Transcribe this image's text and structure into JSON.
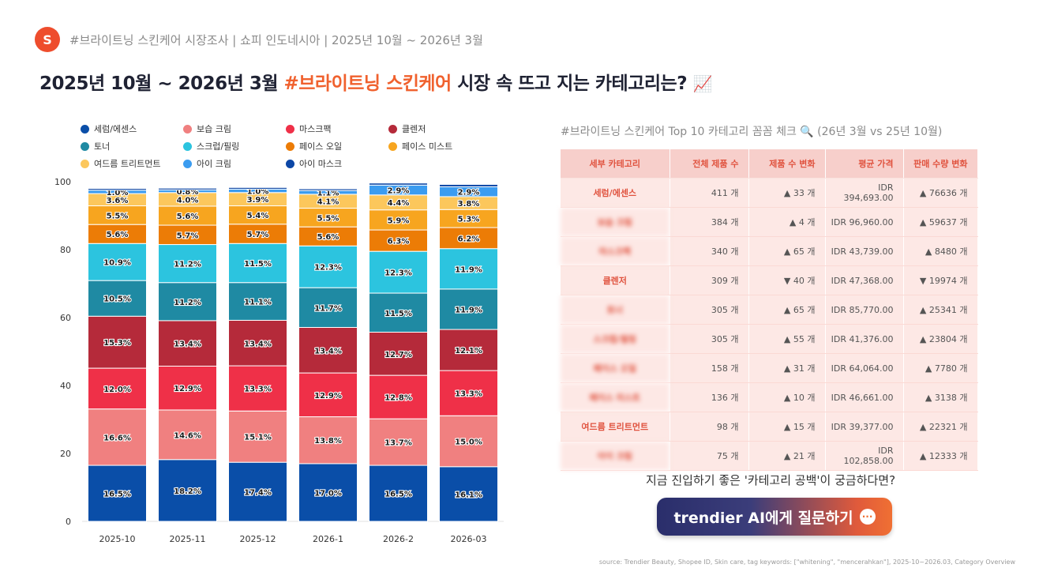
{
  "header": {
    "logo_letter": "S",
    "subtitle": "#브라이트닝 스킨케어 시장조사 | 쇼피 인도네시아 | 2025년 10월 ~ 2026년 3월",
    "title_pre": "2025년 10월 ~ 2026년 3월 ",
    "title_highlight": "#브라이트닝 스킨케어",
    "title_post": " 시장 속 뜨고 지는 카테고리는? ",
    "title_emoji": "📈"
  },
  "chart_data": {
    "type": "bar",
    "stacked": true,
    "categories": [
      "2025-10",
      "2025-11",
      "2025-12",
      "2026-1",
      "2026-2",
      "2026-03"
    ],
    "ylim": [
      0,
      100
    ],
    "yticks": [
      "0",
      "20",
      "40",
      "60",
      "80",
      "100"
    ],
    "legend_position": "top-left",
    "series": [
      {
        "name": "세럼/에센스",
        "color": "#0a4ea8",
        "values": [
          16.5,
          18.2,
          17.4,
          17.0,
          16.5,
          16.1
        ]
      },
      {
        "name": "보습 크림",
        "color": "#f08080",
        "values": [
          16.6,
          14.6,
          15.1,
          13.8,
          13.7,
          15.0
        ]
      },
      {
        "name": "마스크팩",
        "color": "#ef3048",
        "values": [
          12.0,
          12.9,
          13.3,
          12.9,
          12.8,
          13.3
        ]
      },
      {
        "name": "클렌저",
        "color": "#b52a3a",
        "values": [
          15.3,
          13.4,
          13.4,
          13.4,
          12.7,
          12.1
        ]
      },
      {
        "name": "토너",
        "color": "#1f8aa3",
        "values": [
          10.5,
          11.2,
          11.1,
          11.7,
          11.5,
          11.9
        ]
      },
      {
        "name": "스크럽/필링",
        "color": "#2cc4df",
        "values": [
          10.9,
          11.2,
          11.5,
          12.3,
          12.3,
          11.9
        ]
      },
      {
        "name": "페이스 오일",
        "color": "#ec7c06",
        "values": [
          5.6,
          5.7,
          5.7,
          5.6,
          6.3,
          6.2
        ]
      },
      {
        "name": "페이스 미스트",
        "color": "#f7a51f",
        "values": [
          5.5,
          5.6,
          5.4,
          5.5,
          5.9,
          5.3
        ]
      },
      {
        "name": "여드름 트리트먼트",
        "color": "#fcc75c",
        "values": [
          3.6,
          4.0,
          3.9,
          4.1,
          4.4,
          3.8
        ]
      },
      {
        "name": "아이 크림",
        "color": "#3b9cf0",
        "values": [
          1.0,
          0.8,
          1.0,
          1.1,
          2.9,
          2.9
        ]
      },
      {
        "name": "아이 마스크",
        "color": "#0c47a6",
        "values": [
          0.5,
          0.5,
          0.5,
          0.5,
          0.6,
          0.7
        ]
      }
    ],
    "data_labels": [
      [
        "16.5%",
        "16.6%",
        "12.0%",
        "15.3%",
        "10.5%",
        "10.9%",
        "5.6%",
        "5.5%",
        "3.6%",
        "1.0%",
        ""
      ],
      [
        "18.2%",
        "14.6%",
        "12.9%",
        "13.4%",
        "11.2%",
        "11.2%",
        "5.7%",
        "5.6%",
        "4.0%",
        "0.8%",
        ""
      ],
      [
        "17.4%",
        "15.1%",
        "13.3%",
        "13.4%",
        "11.1%",
        "11.5%",
        "5.7%",
        "5.4%",
        "3.9%",
        "1.0%",
        ""
      ],
      [
        "17.0%",
        "13.8%",
        "12.9%",
        "13.4%",
        "11.7%",
        "12.3%",
        "5.6%",
        "5.5%",
        "4.1%",
        "1.1%",
        ""
      ],
      [
        "16.5%",
        "13.7%",
        "12.8%",
        "12.7%",
        "11.5%",
        "12.3%",
        "6.3%",
        "5.9%",
        "4.4%",
        "2.9%",
        ""
      ],
      [
        "16.1%",
        "15.0%",
        "13.3%",
        "12.1%",
        "11.9%",
        "11.9%",
        "6.2%",
        "5.3%",
        "3.8%",
        "2.9%",
        ""
      ]
    ]
  },
  "table": {
    "title": "#브라이트닝 스킨케어 Top 10 카테고리 꼼꼼 체크 🔍 (26년 3월 vs 25년 10월)",
    "headers": [
      "세부 카테고리",
      "전체 제품 수",
      "제품 수 변화",
      "평균 가격",
      "판매 수량 변화"
    ],
    "rows": [
      {
        "category": "세럼/에센스",
        "blurred": false,
        "products": "411 개",
        "product_change": "▲ 33 개",
        "product_dir": "up",
        "avg_price": "IDR 394,693.00",
        "sales_change": "▲ 76636 개",
        "sales_dir": "up"
      },
      {
        "category": "보습 크림",
        "blurred": true,
        "products": "384 개",
        "product_change": "▲ 4 개",
        "product_dir": "up",
        "avg_price": "IDR 96,960.00",
        "sales_change": "▲ 59637 개",
        "sales_dir": "up"
      },
      {
        "category": "마스크팩",
        "blurred": true,
        "products": "340 개",
        "product_change": "▲ 65 개",
        "product_dir": "up",
        "avg_price": "IDR 43,739.00",
        "sales_change": "▲ 8480 개",
        "sales_dir": "up"
      },
      {
        "category": "클렌저",
        "blurred": false,
        "products": "309 개",
        "product_change": "▼ 40 개",
        "product_dir": "down",
        "avg_price": "IDR 47,368.00",
        "sales_change": "▼ 19974 개",
        "sales_dir": "down"
      },
      {
        "category": "토너",
        "blurred": true,
        "products": "305 개",
        "product_change": "▲ 65 개",
        "product_dir": "up",
        "avg_price": "IDR 85,770.00",
        "sales_change": "▲ 25341 개",
        "sales_dir": "up"
      },
      {
        "category": "스크럽/필링",
        "blurred": true,
        "products": "305 개",
        "product_change": "▲ 55 개",
        "product_dir": "up",
        "avg_price": "IDR 41,376.00",
        "sales_change": "▲ 23804 개",
        "sales_dir": "up"
      },
      {
        "category": "페이스 오일",
        "blurred": true,
        "products": "158 개",
        "product_change": "▲ 31 개",
        "product_dir": "up",
        "avg_price": "IDR 64,064.00",
        "sales_change": "▲ 7780 개",
        "sales_dir": "up"
      },
      {
        "category": "페이스 미스트",
        "blurred": true,
        "products": "136 개",
        "product_change": "▲ 10 개",
        "product_dir": "up",
        "avg_price": "IDR 46,661.00",
        "sales_change": "▲ 3138 개",
        "sales_dir": "up"
      },
      {
        "category": "여드름 트리트먼트",
        "blurred": false,
        "products": "98 개",
        "product_change": "▲ 15 개",
        "product_dir": "up",
        "avg_price": "IDR 39,377.00",
        "sales_change": "▲ 22321 개",
        "sales_dir": "up"
      },
      {
        "category": "아이 크림",
        "blurred": true,
        "products": "75 개",
        "product_change": "▲ 21 개",
        "product_dir": "up",
        "avg_price": "IDR 102,858.00",
        "sales_change": "▲ 12333 개",
        "sales_dir": "up"
      }
    ]
  },
  "cta": {
    "question": "지금 진입하기 좋은 '카테고리 공백'이 궁금하다면?",
    "button_label": "trendier AI에게 질문하기",
    "button_icon": "chat-bubble-icon",
    "button_icon_glyph": "···"
  },
  "source": "source: Trendier Beauty, Shopee ID, Skin care, tag keywords: [\"whitening\", \"mencerahkan\"], 2025-10~2026.03, Category Overview"
}
